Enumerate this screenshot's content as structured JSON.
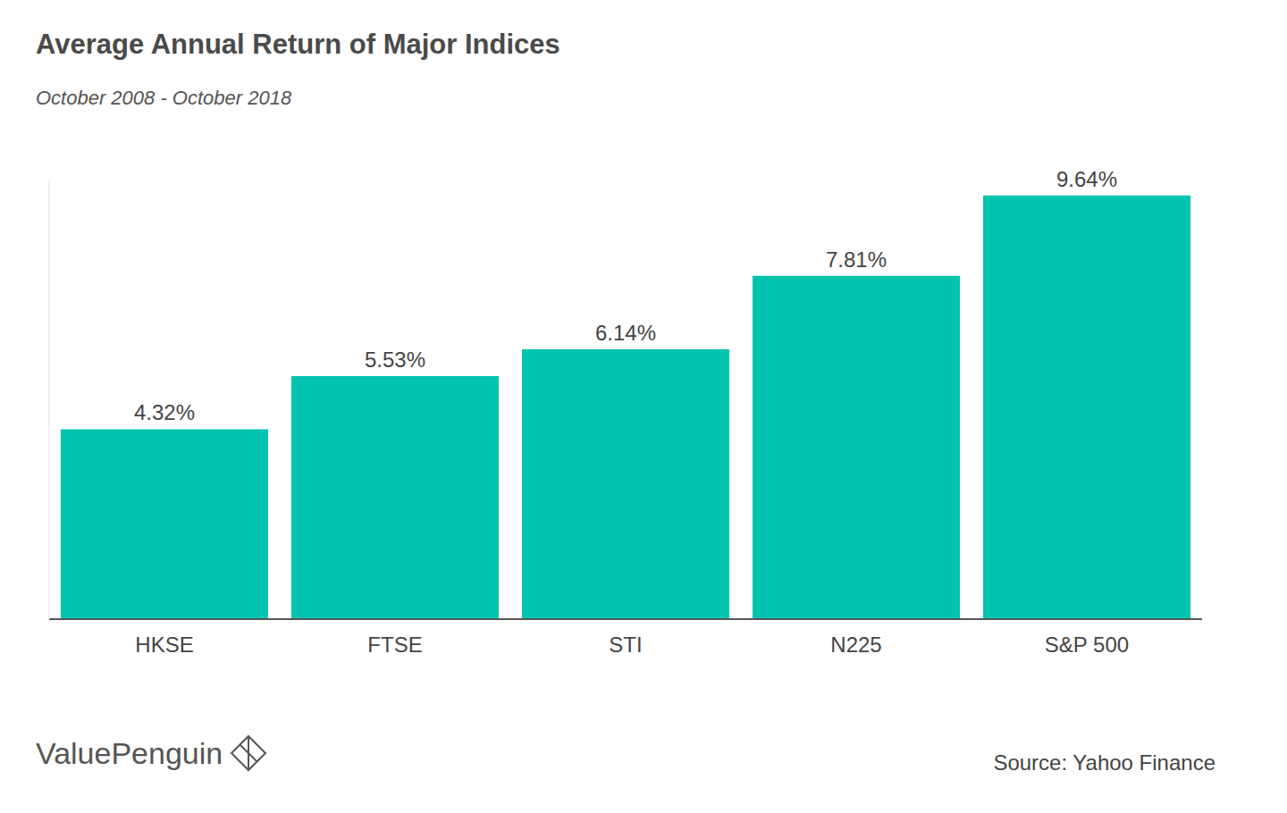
{
  "chart_data": {
    "type": "bar",
    "title": "Average Annual Return of Major Indices",
    "subtitle": "October 2008 - October 2018",
    "categories": [
      "HKSE",
      "FTSE",
      "STI",
      "N225",
      "S&P 500"
    ],
    "values": [
      4.32,
      5.53,
      6.14,
      7.81,
      9.64
    ],
    "value_labels": [
      "4.32%",
      "5.53%",
      "6.14%",
      "7.81%",
      "9.64%"
    ],
    "color": "#00c4b0",
    "ylim": [
      0,
      10
    ],
    "grid": false,
    "data_labels": true,
    "tick_labels": "x",
    "source": "Source: Yahoo Finance",
    "brand": "ValuePenguin"
  }
}
